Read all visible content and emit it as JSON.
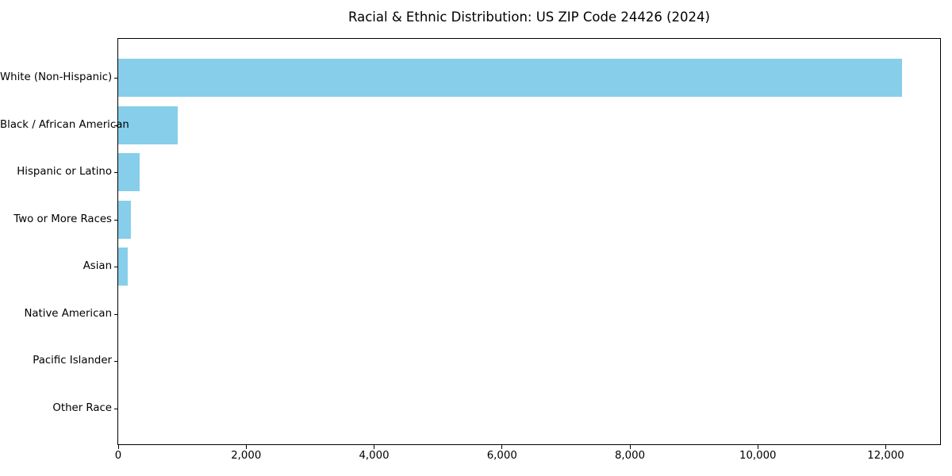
{
  "chart_data": {
    "type": "bar",
    "orientation": "horizontal",
    "title": "Racial & Ethnic Distribution: US ZIP Code 24426 (2024)",
    "categories": [
      "White (Non-Hispanic)",
      "Black / African American",
      "Hispanic or Latino",
      "Two or More Races",
      "Asian",
      "Native American",
      "Pacific Islander",
      "Other Race"
    ],
    "values": [
      12250,
      930,
      340,
      200,
      155,
      0,
      0,
      0
    ],
    "xlabel": "",
    "ylabel": "",
    "xlim": [
      0,
      12862
    ],
    "x_ticks": [
      0,
      2000,
      4000,
      6000,
      8000,
      10000,
      12000
    ],
    "x_tick_labels": [
      "0",
      "2,000",
      "4,000",
      "6,000",
      "8,000",
      "10,000",
      "12,000"
    ],
    "bar_color": "#87CEEB",
    "grid": false,
    "legend": null
  }
}
